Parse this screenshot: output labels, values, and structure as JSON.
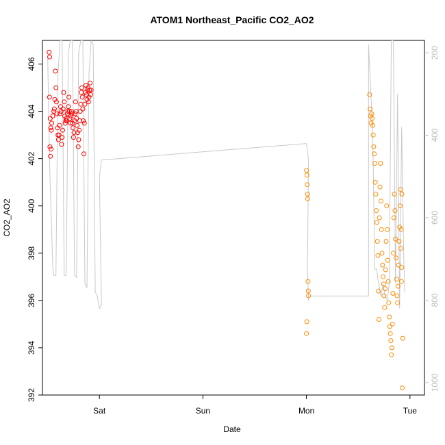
{
  "chart_data": {
    "type": "scatter",
    "title": "ATOM1 Northeast_Pacific CO2_AO2",
    "xlabel": "Date",
    "ylabel": "CO2_AO2",
    "x_tick_labels": [
      "Sat",
      "Sun",
      "Mon",
      "Tue"
    ],
    "x_tick_positions_days": [
      1,
      2,
      3,
      4
    ],
    "xlim_days": [
      0.45,
      4.14
    ],
    "ylim": [
      392,
      407
    ],
    "yticks": [
      392,
      394,
      396,
      398,
      400,
      402,
      404,
      406
    ],
    "y2_ticks": [
      200,
      400,
      600,
      800,
      1000
    ],
    "y2lim": [
      1030,
      170
    ],
    "grid": false,
    "colors": {
      "series1": "#ff0000",
      "series2": "#ff8c00",
      "secondary_line": "#c8c8c8",
      "right_axis": "#bdbdbd"
    },
    "series": [
      {
        "color": "#ff0000",
        "marker": "open-circle",
        "points": [
          [
            0.515,
            406.5
          ],
          [
            0.52,
            406.3
          ],
          [
            0.518,
            404.6
          ],
          [
            0.525,
            403.7
          ],
          [
            0.53,
            403.3
          ],
          [
            0.535,
            403.2
          ],
          [
            0.522,
            402.5
          ],
          [
            0.527,
            402.1
          ],
          [
            0.533,
            402.4
          ],
          [
            0.54,
            403.5
          ],
          [
            0.55,
            403.8
          ],
          [
            0.56,
            404.0
          ],
          [
            0.565,
            404.1
          ],
          [
            0.57,
            404.5
          ],
          [
            0.575,
            405.7
          ],
          [
            0.58,
            405.0
          ],
          [
            0.585,
            404.4
          ],
          [
            0.59,
            403.9
          ],
          [
            0.595,
            403.3
          ],
          [
            0.6,
            403.0
          ],
          [
            0.605,
            402.8
          ],
          [
            0.61,
            403.0
          ],
          [
            0.615,
            403.4
          ],
          [
            0.62,
            403.9
          ],
          [
            0.625,
            404.2
          ],
          [
            0.63,
            404.0
          ],
          [
            0.635,
            402.6
          ],
          [
            0.64,
            402.9
          ],
          [
            0.645,
            403.2
          ],
          [
            0.65,
            404.1
          ],
          [
            0.655,
            404.8
          ],
          [
            0.66,
            404.4
          ],
          [
            0.665,
            403.8
          ],
          [
            0.67,
            403.5
          ],
          [
            0.675,
            403.6
          ],
          [
            0.68,
            403.7
          ],
          [
            0.685,
            403.6
          ],
          [
            0.69,
            403.9
          ],
          [
            0.695,
            404.0
          ],
          [
            0.7,
            404.2
          ],
          [
            0.705,
            404.6
          ],
          [
            0.71,
            404.0
          ],
          [
            0.715,
            403.7
          ],
          [
            0.72,
            403.5
          ],
          [
            0.725,
            403.8
          ],
          [
            0.73,
            404.0
          ],
          [
            0.735,
            403.9
          ],
          [
            0.74,
            403.5
          ],
          [
            0.745,
            403.3
          ],
          [
            0.75,
            402.9
          ],
          [
            0.755,
            403.1
          ],
          [
            0.76,
            403.6
          ],
          [
            0.765,
            403.9
          ],
          [
            0.77,
            404.4
          ],
          [
            0.775,
            404.0
          ],
          [
            0.78,
            403.7
          ],
          [
            0.785,
            403.4
          ],
          [
            0.79,
            403.1
          ],
          [
            0.795,
            402.5
          ],
          [
            0.8,
            402.8
          ],
          [
            0.805,
            403.2
          ],
          [
            0.81,
            403.6
          ],
          [
            0.815,
            404.0
          ],
          [
            0.82,
            404.3
          ],
          [
            0.825,
            404.8
          ],
          [
            0.83,
            405.0
          ],
          [
            0.835,
            404.6
          ],
          [
            0.84,
            404.1
          ],
          [
            0.845,
            403.6
          ],
          [
            0.85,
            402.2
          ],
          [
            0.855,
            403.5
          ],
          [
            0.86,
            404.3
          ],
          [
            0.865,
            404.8
          ],
          [
            0.87,
            405.1
          ],
          [
            0.875,
            404.7
          ],
          [
            0.88,
            404.5
          ],
          [
            0.885,
            404.9
          ],
          [
            0.89,
            405.0
          ],
          [
            0.895,
            404.4
          ],
          [
            0.9,
            404.6
          ],
          [
            0.905,
            404.9
          ],
          [
            0.91,
            405.2
          ],
          [
            0.915,
            404.7
          ],
          [
            0.92,
            404.9
          ]
        ]
      },
      {
        "color": "#ff8c00",
        "marker": "open-circle",
        "points": [
          [
            3.0,
            401.5
          ],
          [
            3.005,
            401.3
          ],
          [
            3.008,
            400.9
          ],
          [
            3.01,
            400.5
          ],
          [
            3.012,
            400.3
          ],
          [
            3.015,
            396.8
          ],
          [
            3.018,
            396.4
          ],
          [
            3.02,
            396.2
          ],
          [
            3.003,
            395.1
          ],
          [
            3.0,
            394.6
          ],
          [
            3.61,
            404.7
          ],
          [
            3.615,
            404.1
          ],
          [
            3.62,
            403.8
          ],
          [
            3.625,
            403.5
          ],
          [
            3.63,
            403.9
          ],
          [
            3.635,
            403.7
          ],
          [
            3.64,
            403.4
          ],
          [
            3.645,
            403.0
          ],
          [
            3.65,
            402.5
          ],
          [
            3.655,
            402.2
          ],
          [
            3.66,
            401.8
          ],
          [
            3.665,
            401.0
          ],
          [
            3.67,
            400.5
          ],
          [
            3.675,
            399.8
          ],
          [
            3.68,
            399.3
          ],
          [
            3.685,
            398.5
          ],
          [
            3.69,
            397.9
          ],
          [
            3.695,
            396.4
          ],
          [
            3.7,
            395.2
          ],
          [
            3.705,
            399.5
          ],
          [
            3.71,
            400.8
          ],
          [
            3.715,
            401.8
          ],
          [
            3.72,
            400.2
          ],
          [
            3.725,
            399.0
          ],
          [
            3.73,
            398.0
          ],
          [
            3.735,
            397.5
          ],
          [
            3.74,
            397.0
          ],
          [
            3.745,
            396.7
          ],
          [
            3.75,
            396.2
          ],
          [
            3.755,
            395.7
          ],
          [
            3.76,
            396.5
          ],
          [
            3.765,
            397.3
          ],
          [
            3.77,
            398.5
          ],
          [
            3.775,
            400.0
          ],
          [
            3.78,
            399.0
          ],
          [
            3.785,
            397.7
          ],
          [
            3.79,
            396.8
          ],
          [
            3.795,
            395.9
          ],
          [
            3.8,
            395.3
          ],
          [
            3.805,
            394.9
          ],
          [
            3.81,
            394.6
          ],
          [
            3.815,
            394.3
          ],
          [
            3.82,
            393.7
          ],
          [
            3.825,
            394.0
          ],
          [
            3.83,
            395.0
          ],
          [
            3.835,
            396.3
          ],
          [
            3.84,
            398.0
          ],
          [
            3.845,
            399.5
          ],
          [
            3.85,
            400.5
          ],
          [
            3.855,
            399.8
          ],
          [
            3.86,
            398.6
          ],
          [
            3.865,
            397.8
          ],
          [
            3.87,
            396.9
          ],
          [
            3.875,
            396.2
          ],
          [
            3.88,
            395.9
          ],
          [
            3.885,
            396.6
          ],
          [
            3.89,
            397.5
          ],
          [
            3.895,
            398.5
          ],
          [
            3.9,
            399.1
          ],
          [
            3.905,
            400.0
          ],
          [
            3.91,
            400.7
          ],
          [
            3.915,
            399.0
          ],
          [
            3.92,
            397.4
          ],
          [
            3.925,
            392.3
          ],
          [
            3.93,
            394.4
          ],
          [
            3.912,
            398.2
          ],
          [
            3.918,
            396.8
          ],
          [
            3.922,
            400.5
          ]
        ]
      }
    ],
    "secondary_line": {
      "color": "#c8c8c8",
      "points": [
        [
          0.5,
          205
        ],
        [
          0.52,
          480
        ],
        [
          0.55,
          720
        ],
        [
          0.56,
          740
        ],
        [
          0.58,
          740
        ],
        [
          0.6,
          250
        ],
        [
          0.62,
          170
        ],
        [
          0.64,
          170
        ],
        [
          0.66,
          740
        ],
        [
          0.68,
          740
        ],
        [
          0.7,
          200
        ],
        [
          0.72,
          170
        ],
        [
          0.74,
          170
        ],
        [
          0.76,
          740
        ],
        [
          0.78,
          745
        ],
        [
          0.8,
          200
        ],
        [
          0.82,
          170
        ],
        [
          0.84,
          170
        ],
        [
          0.86,
          760
        ],
        [
          0.88,
          770
        ],
        [
          0.9,
          250
        ],
        [
          0.92,
          170
        ],
        [
          0.94,
          180
        ],
        [
          0.96,
          780
        ],
        [
          0.98,
          790
        ],
        [
          1.0,
          820
        ],
        [
          1.02,
          810
        ],
        [
          1.0,
          500
        ],
        [
          1.02,
          460
        ],
        [
          3.0,
          420
        ],
        [
          3.02,
          460
        ],
        [
          3.01,
          720
        ],
        [
          3.02,
          800
        ],
        [
          3.02,
          790
        ],
        [
          3.6,
          790
        ],
        [
          3.6,
          180
        ],
        [
          3.64,
          390
        ],
        [
          3.66,
          725
        ],
        [
          3.68,
          725
        ],
        [
          3.69,
          750
        ],
        [
          3.7,
          760
        ],
        [
          3.71,
          780
        ],
        [
          3.72,
          790
        ],
        [
          3.74,
          760
        ],
        [
          3.76,
          790
        ],
        [
          3.78,
          800
        ],
        [
          3.8,
          760
        ],
        [
          3.82,
          170
        ],
        [
          3.84,
          170
        ],
        [
          3.86,
          760
        ],
        [
          3.88,
          300
        ],
        [
          3.9,
          820
        ],
        [
          3.92,
          380
        ],
        [
          3.94,
          700
        ],
        [
          3.95,
          780
        ]
      ]
    }
  }
}
